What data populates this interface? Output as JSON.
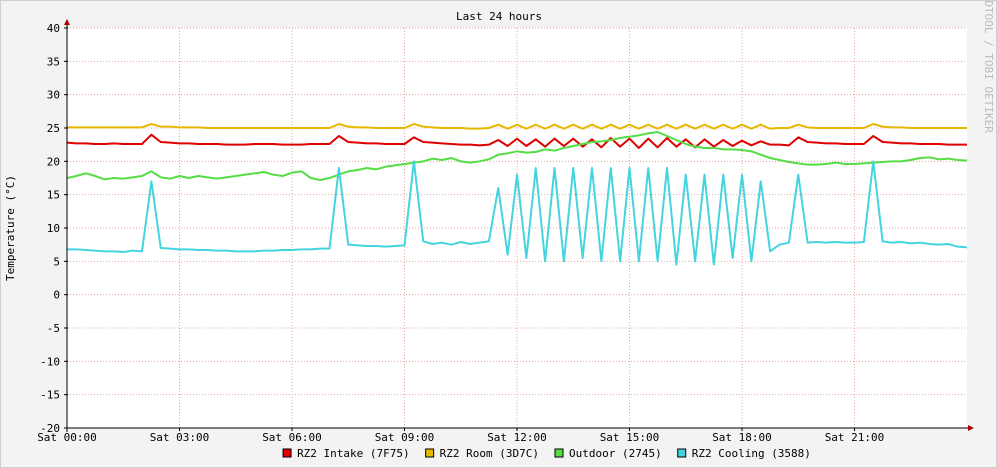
{
  "chart_data": {
    "type": "line",
    "title": "Last 24 hours",
    "y_label": "Temperature (°C)",
    "watermark": "RRDTOOL / TOBI OETIKER",
    "xlim": [
      0,
      24
    ],
    "ylim": [
      -20,
      40
    ],
    "xticks": [
      {
        "value": 0,
        "label": "Sat 00:00"
      },
      {
        "value": 3,
        "label": "Sat 03:00"
      },
      {
        "value": 6,
        "label": "Sat 06:00"
      },
      {
        "value": 9,
        "label": "Sat 09:00"
      },
      {
        "value": 12,
        "label": "Sat 12:00"
      },
      {
        "value": 15,
        "label": "Sat 15:00"
      },
      {
        "value": 18,
        "label": "Sat 18:00"
      },
      {
        "value": 21,
        "label": "Sat 21:00"
      }
    ],
    "yticks": [
      -20,
      -15,
      -10,
      -5,
      0,
      5,
      10,
      15,
      20,
      25,
      30,
      35,
      40
    ],
    "grid": true,
    "legend": "bottom",
    "x": [
      0,
      0.25,
      0.5,
      0.75,
      1,
      1.25,
      1.5,
      1.75,
      2,
      2.25,
      2.5,
      2.75,
      3,
      3.25,
      3.5,
      3.75,
      4,
      4.25,
      4.5,
      4.75,
      5,
      5.25,
      5.5,
      5.75,
      6,
      6.25,
      6.5,
      6.75,
      7,
      7.25,
      7.5,
      7.75,
      8,
      8.25,
      8.5,
      8.75,
      9,
      9.25,
      9.5,
      9.75,
      10,
      10.25,
      10.5,
      10.75,
      11,
      11.25,
      11.5,
      11.75,
      12,
      12.25,
      12.5,
      12.75,
      13,
      13.25,
      13.5,
      13.75,
      14,
      14.25,
      14.5,
      14.75,
      15,
      15.25,
      15.5,
      15.75,
      16,
      16.25,
      16.5,
      16.75,
      17,
      17.25,
      17.5,
      17.75,
      18,
      18.25,
      18.5,
      18.75,
      19,
      19.25,
      19.5,
      19.75,
      20,
      20.25,
      20.5,
      20.75,
      21,
      21.25,
      21.5,
      21.75,
      22,
      22.25,
      22.5,
      22.75,
      23,
      23.25,
      23.5,
      23.75,
      24
    ],
    "series": [
      {
        "name": "RZ2 Intake (7F75)",
        "color": "#e00000",
        "values": [
          22.8,
          22.7,
          22.7,
          22.6,
          22.6,
          22.7,
          22.6,
          22.6,
          22.6,
          24,
          22.9,
          22.8,
          22.7,
          22.7,
          22.6,
          22.6,
          22.6,
          22.5,
          22.5,
          22.5,
          22.6,
          22.6,
          22.6,
          22.5,
          22.5,
          22.5,
          22.6,
          22.6,
          22.6,
          23.8,
          22.9,
          22.8,
          22.7,
          22.7,
          22.6,
          22.6,
          22.6,
          23.6,
          22.9,
          22.8,
          22.7,
          22.6,
          22.5,
          22.5,
          22.4,
          22.5,
          23.2,
          22.3,
          23.4,
          22.3,
          23.3,
          22.2,
          23.4,
          22.3,
          23.4,
          22.2,
          23.3,
          22.1,
          23.5,
          22.2,
          23.4,
          22.0,
          23.4,
          22.1,
          23.5,
          22.2,
          23.3,
          22.1,
          23.3,
          22.2,
          23.2,
          22.3,
          23.1,
          22.4,
          23.0,
          22.5,
          22.5,
          22.4,
          23.6,
          22.9,
          22.8,
          22.7,
          22.7,
          22.6,
          22.6,
          22.6,
          23.8,
          22.9,
          22.8,
          22.7,
          22.7,
          22.6,
          22.6,
          22.6,
          22.5,
          22.5,
          22.5
        ]
      },
      {
        "name": "RZ2 Room (3D7C)",
        "color": "#e6b800",
        "values": [
          25.1,
          25.1,
          25.1,
          25.1,
          25.1,
          25.1,
          25.1,
          25.1,
          25.1,
          25.6,
          25.2,
          25.2,
          25.1,
          25.1,
          25.1,
          25.0,
          25.0,
          25.0,
          25.0,
          25.0,
          25.0,
          25.0,
          25.0,
          25.0,
          25.0,
          25.0,
          25.0,
          25.0,
          25.0,
          25.6,
          25.2,
          25.1,
          25.1,
          25.0,
          25.0,
          25.0,
          25.0,
          25.6,
          25.2,
          25.1,
          25.0,
          25.0,
          25.0,
          24.9,
          24.9,
          25.0,
          25.5,
          24.9,
          25.5,
          24.9,
          25.5,
          24.9,
          25.5,
          24.9,
          25.5,
          24.9,
          25.5,
          24.9,
          25.5,
          24.9,
          25.5,
          24.9,
          25.5,
          24.9,
          25.5,
          24.9,
          25.5,
          24.9,
          25.5,
          24.9,
          25.5,
          24.9,
          25.5,
          24.9,
          25.5,
          24.9,
          25.0,
          25.0,
          25.5,
          25.1,
          25.0,
          25.0,
          25.0,
          25.0,
          25.0,
          25.0,
          25.6,
          25.2,
          25.1,
          25.1,
          25.0,
          25.0,
          25.0,
          25.0,
          25.0,
          25.0,
          25.0
        ]
      },
      {
        "name": "Outdoor (2745)",
        "color": "#55dd44",
        "values": [
          17.5,
          17.8,
          18.2,
          17.8,
          17.3,
          17.5,
          17.4,
          17.6,
          17.8,
          18.5,
          17.6,
          17.4,
          17.8,
          17.5,
          17.8,
          17.6,
          17.4,
          17.6,
          17.8,
          18.0,
          18.2,
          18.4,
          18.0,
          17.8,
          18.3,
          18.5,
          17.5,
          17.2,
          17.5,
          18.0,
          18.5,
          18.7,
          19.0,
          18.8,
          19.2,
          19.4,
          19.6,
          19.8,
          20.0,
          20.4,
          20.2,
          20.5,
          20.0,
          19.8,
          20.0,
          20.3,
          21.0,
          21.2,
          21.5,
          21.3,
          21.4,
          21.8,
          21.6,
          22.0,
          22.3,
          22.6,
          22.9,
          23.0,
          23.2,
          23.5,
          23.7,
          23.9,
          24.2,
          24.4,
          23.8,
          23.2,
          22.6,
          22.2,
          22.0,
          22.0,
          21.8,
          21.8,
          21.7,
          21.5,
          21.0,
          20.5,
          20.2,
          19.9,
          19.7,
          19.5,
          19.5,
          19.6,
          19.8,
          19.6,
          19.6,
          19.7,
          19.8,
          19.9,
          20.0,
          20.0,
          20.2,
          20.5,
          20.6,
          20.3,
          20.4,
          20.2,
          20.1
        ]
      },
      {
        "name": "RZ2 Cooling (3588)",
        "color": "#44d4e0",
        "values": [
          6.8,
          6.8,
          6.7,
          6.6,
          6.5,
          6.5,
          6.4,
          6.6,
          6.5,
          17,
          7.0,
          6.9,
          6.8,
          6.8,
          6.7,
          6.7,
          6.6,
          6.6,
          6.5,
          6.5,
          6.5,
          6.6,
          6.6,
          6.7,
          6.7,
          6.8,
          6.8,
          6.9,
          6.9,
          19,
          7.5,
          7.4,
          7.3,
          7.3,
          7.2,
          7.3,
          7.4,
          20,
          8,
          7.6,
          7.8,
          7.5,
          7.9,
          7.6,
          7.8,
          8,
          16,
          6,
          18,
          5.5,
          19,
          5,
          19,
          5,
          19,
          5.5,
          19,
          5,
          19,
          5,
          19,
          5,
          19,
          5,
          19,
          4.5,
          18,
          5,
          18,
          4.5,
          18,
          5.5,
          18,
          5,
          17,
          6.5,
          7.5,
          7.8,
          18,
          7.8,
          7.9,
          7.8,
          7.9,
          7.8,
          7.8,
          7.9,
          20,
          8,
          7.8,
          7.9,
          7.7,
          7.8,
          7.6,
          7.5,
          7.6,
          7.2,
          7.1
        ]
      }
    ]
  }
}
